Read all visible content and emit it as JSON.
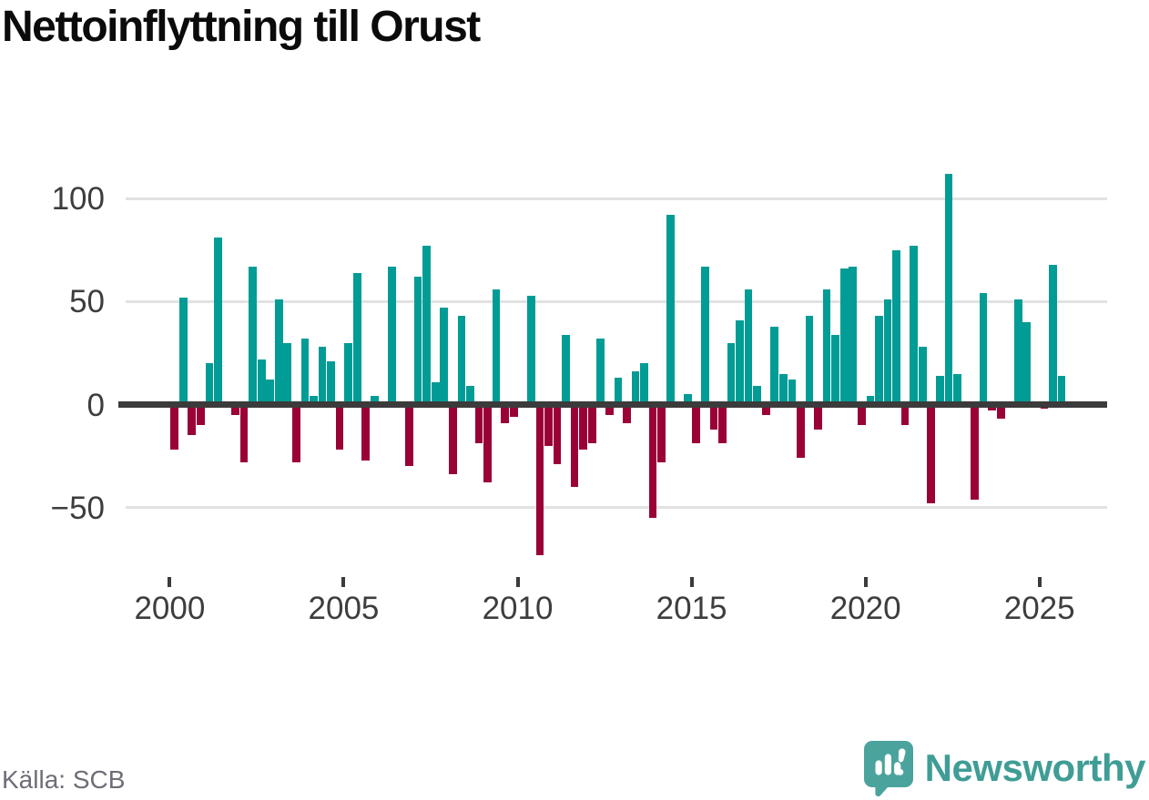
{
  "title": "Nettoinflyttning till Orust",
  "source": "Källa: SCB",
  "branding": {
    "name": "Newsworthy"
  },
  "colors": {
    "positive_bar": "#009C95",
    "negative_bar": "#9A0237",
    "zero_axis": "#3b3b3b",
    "gridline": "#e2e2e2",
    "axis_text": "#3d3d3d",
    "title_text": "#0b0b0b",
    "source_text": "#6e6e78",
    "brand_teal": "#3f9d96",
    "brand_icon_teal": "#4ba39d"
  },
  "y_axis": {
    "tick_labels": [
      "100",
      "50",
      "0",
      "−50"
    ],
    "tick_values": [
      100,
      50,
      0,
      -50
    ]
  },
  "x_axis": {
    "tick_labels": [
      "2000",
      "2005",
      "2010",
      "2015",
      "2020",
      "2025"
    ],
    "tick_years": [
      2000,
      2005,
      2010,
      2015,
      2020,
      2025
    ]
  },
  "chart_data": {
    "type": "bar",
    "title": "Nettoinflyttning till Orust",
    "frequency": "quarterly",
    "x_start": "2000-Q1",
    "x_end": "2025-Q3",
    "values": [
      -22,
      52,
      -15,
      -10,
      20,
      81,
      0,
      -5,
      -28,
      67,
      22,
      12,
      51,
      30,
      -28,
      32,
      4,
      28,
      21,
      -22,
      30,
      64,
      -27,
      4,
      0,
      67,
      0,
      -30,
      62,
      77,
      11,
      47,
      -34,
      43,
      9,
      -19,
      -38,
      56,
      -9,
      -6,
      0,
      53,
      -73,
      -20,
      -29,
      34,
      -40,
      -22,
      -19,
      32,
      -5,
      13,
      -9,
      16,
      20,
      -55,
      -28,
      92,
      0,
      5,
      -19,
      67,
      -12,
      -19,
      30,
      41,
      56,
      9,
      -5,
      38,
      15,
      12,
      -26,
      43,
      -12,
      56,
      34,
      66,
      67,
      -10,
      4,
      43,
      51,
      75,
      -10,
      77,
      28,
      -48,
      14,
      112,
      15,
      0,
      -46,
      54,
      -3,
      -7,
      0,
      51,
      40,
      0,
      -2,
      68,
      14
    ],
    "ylim": [
      -80,
      115
    ],
    "y_ticks": [
      100,
      50,
      0,
      -50
    ],
    "x_tick_labels": [
      "2000",
      "2005",
      "2010",
      "2015",
      "2020",
      "2025"
    ],
    "grid": true,
    "legend": false,
    "positive_color": "#009C95",
    "negative_color": "#9A0237"
  }
}
